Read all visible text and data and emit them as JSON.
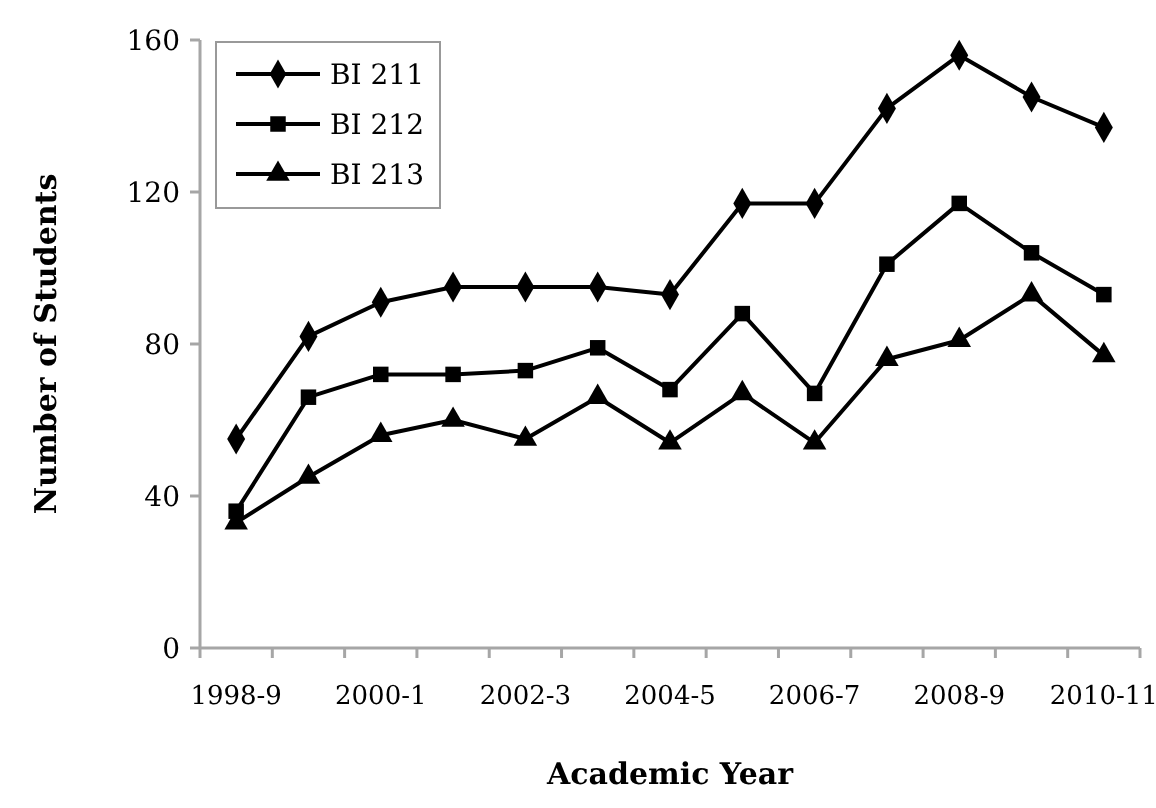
{
  "chart_data": {
    "type": "line",
    "xlabel": "Academic Year",
    "ylabel": "Number of Students",
    "categories": [
      "1998-9",
      null,
      "2000-1",
      null,
      "2002-3",
      null,
      "2004-5",
      null,
      "2006-7",
      null,
      "2008-9",
      null,
      "2010-11"
    ],
    "ylim": [
      0,
      160
    ],
    "yticks": [
      0,
      40,
      80,
      120,
      160
    ],
    "grid": false,
    "legend": "top left",
    "series": [
      {
        "name": "BI 211",
        "color": "#000000",
        "marker": "diamond",
        "values": [
          55,
          82,
          91,
          95,
          95,
          95,
          93,
          117,
          117,
          142,
          156,
          145,
          137
        ]
      },
      {
        "name": "BI 212",
        "color": "#000000",
        "marker": "square",
        "values": [
          36,
          66,
          72,
          72,
          73,
          79,
          68,
          88,
          67,
          101,
          117,
          104,
          93
        ]
      },
      {
        "name": "BI 213",
        "color": "#000000",
        "marker": "triangle",
        "values": [
          33,
          45,
          56,
          60,
          55,
          66,
          54,
          67,
          54,
          76,
          81,
          93,
          77
        ]
      }
    ]
  }
}
